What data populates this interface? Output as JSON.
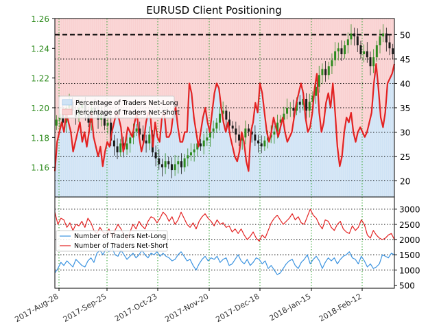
{
  "colors": {
    "long_fill": "#cfe3f5",
    "short_fill": "#f9d0d0",
    "long_line": "#3b93e0",
    "short_line": "#e32222",
    "price_axis": "#2e8b1e",
    "up_candle": "#2e8b1e",
    "down_candle": "#1a1a1a",
    "grid_vertical": "#2aa02a",
    "grid_horizontal": "#000000"
  },
  "chart_data": [
    {
      "type": "line",
      "panel": "top",
      "title": "EURUSD Client Positioning",
      "x": [
        "2017-Aug-28",
        "2017-Sep-25",
        "2017-Oct-23",
        "2017-Nov-20",
        "2017-Dec-18",
        "2018-Jan-15",
        "2018-Feb-12"
      ],
      "x_tick_labels": [
        "2017-Aug-28",
        "2017-Sep-25",
        "2017-Oct-23",
        "2017-Nov-20",
        "2017-Dec-18",
        "2018-Jan-15",
        "2018-Feb-12"
      ],
      "left_axis": {
        "ticks": [
          1.16,
          1.18,
          1.2,
          1.22,
          1.24,
          1.26
        ],
        "ylim": [
          1.14,
          1.26
        ]
      },
      "right_axis": {
        "ticks": [
          20,
          25,
          30,
          35,
          40,
          45,
          50
        ],
        "ylim": [
          16.7,
          53.3
        ]
      },
      "reference_line": 50,
      "legend": {
        "placement": "left",
        "entries": [
          "Percentage of Traders Net-Long",
          "Percentage of Traders Net-Short"
        ]
      },
      "net_long_pct": [
        22,
        28,
        30,
        32,
        30,
        34,
        32,
        30,
        26,
        28,
        30,
        32,
        28,
        30,
        27,
        30,
        34,
        29,
        27,
        25,
        27,
        23,
        26,
        28,
        27,
        30,
        32,
        34,
        33,
        31,
        26,
        28,
        31,
        30,
        29,
        32,
        34,
        29,
        26,
        28,
        32,
        34,
        33,
        27,
        32,
        29,
        28,
        33,
        34,
        29,
        29,
        30,
        34,
        35,
        31,
        28,
        28,
        30,
        30,
        40,
        38,
        33,
        30,
        27,
        30,
        33,
        35,
        32,
        30,
        34,
        38,
        40,
        39,
        35,
        32,
        30,
        32,
        29,
        27,
        25,
        24,
        26,
        30,
        28,
        24,
        22,
        30,
        32,
        36,
        34,
        40,
        38,
        34,
        30,
        28,
        30,
        33,
        31,
        29,
        31,
        33,
        30,
        28,
        29,
        30,
        33,
        36,
        38,
        40,
        38,
        33,
        30,
        31,
        34,
        39,
        42,
        34,
        30,
        32,
        36,
        38,
        35,
        40,
        34,
        27,
        23,
        25,
        30,
        33,
        32,
        34,
        30,
        28,
        30,
        31,
        30,
        29,
        30,
        32,
        34,
        40,
        44,
        39,
        33,
        31,
        34,
        40,
        41,
        42,
        44
      ],
      "price_close": [
        1.192,
        1.196,
        1.19,
        1.2,
        1.204,
        1.198,
        1.194,
        1.2,
        1.202,
        1.196,
        1.19,
        1.2,
        1.198,
        1.192,
        1.196,
        1.188,
        1.19,
        1.178,
        1.174,
        1.17,
        1.176,
        1.172,
        1.176,
        1.18,
        1.184,
        1.186,
        1.182,
        1.178,
        1.176,
        1.182,
        1.17,
        1.166,
        1.162,
        1.16,
        1.164,
        1.162,
        1.158,
        1.162,
        1.164,
        1.16,
        1.166,
        1.168,
        1.17,
        1.172,
        1.176,
        1.174,
        1.178,
        1.18,
        1.184,
        1.186,
        1.19,
        1.196,
        1.198,
        1.192,
        1.188,
        1.186,
        1.182,
        1.178,
        1.18,
        1.186,
        1.184,
        1.182,
        1.178,
        1.176,
        1.174,
        1.178,
        1.18,
        1.182,
        1.184,
        1.19,
        1.192,
        1.196,
        1.2,
        1.2,
        1.198,
        1.204,
        1.202,
        1.206,
        1.198,
        1.204,
        1.208,
        1.214,
        1.222,
        1.226,
        1.222,
        1.228,
        1.232,
        1.238,
        1.24,
        1.236,
        1.242,
        1.246,
        1.25,
        1.248,
        1.242,
        1.236,
        1.238,
        1.234,
        1.228,
        1.234,
        1.242,
        1.248,
        1.25,
        1.244,
        1.24,
        1.236
      ]
    },
    {
      "type": "line",
      "panel": "bottom",
      "x_tick_labels": [
        "2017-Aug-28",
        "2017-Sep-25",
        "2017-Oct-23",
        "2017-Nov-20",
        "2017-Dec-18",
        "2018-Jan-15",
        "2018-Feb-12"
      ],
      "right_axis": {
        "ticks": [
          500,
          1000,
          1500,
          2000,
          2500,
          3000
        ],
        "ylim": [
          400,
          3400
        ]
      },
      "legend": {
        "placement": "left",
        "entries": [
          "Number of Traders Net-Long",
          "Number of Traders Net-Short"
        ]
      },
      "series": [
        {
          "name": "Number of Traders Net-Long",
          "values": [
            900,
            1050,
            1250,
            1150,
            1300,
            1200,
            1100,
            1350,
            1250,
            1150,
            1100,
            1300,
            1400,
            1250,
            1550,
            1650,
            1500,
            1700,
            1600,
            1750,
            1500,
            1450,
            1650,
            1500,
            1350,
            1450,
            1550,
            1400,
            1500,
            1650,
            1500,
            1400,
            1550,
            1500,
            1600,
            1450,
            1550,
            1450,
            1400,
            1300,
            1350,
            1500,
            1600,
            1450,
            1300,
            1350,
            1150,
            1000,
            1200,
            1350,
            1450,
            1300,
            1400,
            1350,
            1450,
            1250,
            1350,
            1400,
            1150,
            1200,
            1350,
            1500,
            1300,
            1200,
            1350,
            1150,
            1250,
            1400,
            1350,
            1200,
            1300,
            1050,
            1150,
            1000,
            850,
            900,
            1050,
            1200,
            1300,
            1350,
            1150,
            1050,
            1250,
            1350,
            1500,
            1200,
            1350,
            1450,
            1300,
            1050,
            1250,
            1400,
            1300,
            1400,
            1200,
            1350,
            1450,
            1500,
            1600,
            1400,
            1350,
            1200,
            1450,
            1300,
            1100,
            1200,
            1050,
            1100,
            1200,
            1500,
            1450,
            1400,
            1550,
            1500
          ]
        },
        {
          "name": "Number of Traders Net-Short",
          "values": [
            2900,
            2500,
            2700,
            2650,
            2400,
            2550,
            2300,
            2500,
            2450,
            2600,
            2400,
            2700,
            2550,
            2300,
            2200,
            2400,
            2250,
            2200,
            2350,
            2100,
            2300,
            2500,
            2350,
            2150,
            2000,
            2250,
            2500,
            2350,
            2600,
            2450,
            2350,
            2600,
            2750,
            2700,
            2550,
            2700,
            2900,
            2800,
            2600,
            2750,
            2500,
            2650,
            2900,
            2700,
            2500,
            2400,
            2550,
            2350,
            2600,
            2750,
            2850,
            2700,
            2600,
            2450,
            2650,
            2500,
            2550,
            2400,
            2450,
            2250,
            2350,
            2200,
            2350,
            2150,
            2000,
            2100,
            2250,
            2050,
            1950,
            2150,
            2050,
            2300,
            2550,
            2700,
            2800,
            2650,
            2500,
            2600,
            2700,
            2850,
            2650,
            2750,
            2550,
            2500,
            2750,
            3000,
            2800,
            2700,
            2500,
            2350,
            2650,
            2600,
            2400,
            2300,
            2500,
            2600,
            2350,
            2250,
            2200,
            2450,
            2300,
            2400,
            2650,
            2500,
            2150,
            2050,
            2300,
            2150,
            2050,
            2000,
            2050,
            2150,
            2200,
            2000
          ]
        }
      ]
    }
  ]
}
